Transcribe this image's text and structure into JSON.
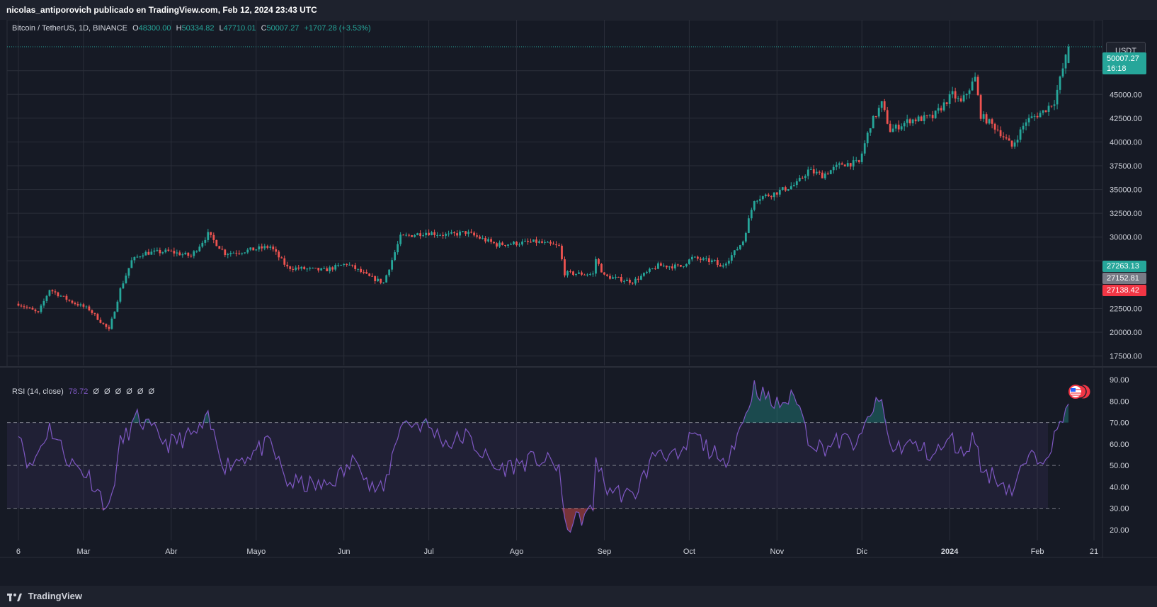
{
  "header": {
    "attribution": "nicolas_antiporovich publicado en TradingView.com, Feb 12, 2024 23:43 UTC"
  },
  "legend": {
    "symbol": "Bitcoin / TetherUS, 1D, BINANCE",
    "o_label": "O",
    "o_value": "48300.00",
    "h_label": "H",
    "h_value": "50334.82",
    "l_label": "L",
    "l_value": "47710.01",
    "c_label": "C",
    "c_value": "50007.27",
    "change": "+1707.28 (+3.53%)"
  },
  "rsi_legend": {
    "label": "RSI (14, close)",
    "value": "78.72",
    "extras": "Ø Ø Ø Ø Ø Ø"
  },
  "currency_button": "USDT",
  "price_tags": {
    "last_price": "50007.27",
    "countdown": "16:18",
    "tag_green": "27263.13",
    "tag_gray": "27152.81",
    "tag_red": "27138.42"
  },
  "footer": {
    "brand": "TradingView"
  },
  "colors": {
    "up": "#26a69a",
    "down": "#ef5350",
    "rsi_line": "#7e57c2",
    "background": "#161a25",
    "grid": "#2a2e39",
    "text": "#d1d4dc"
  },
  "chart_data": [
    {
      "type": "candlestick",
      "ylim": [
        16500,
        51500
      ],
      "y_ticks": [
        17500,
        20000,
        22500,
        25000,
        27500,
        30000,
        32500,
        35000,
        37500,
        40000,
        42500,
        45000,
        47500
      ],
      "y_tick_labels_visible": [
        "17500.00",
        "20000.00",
        "22500.00",
        "30000.00",
        "32500.00",
        "35000.00",
        "37500.00",
        "40000.00",
        "42500.00",
        "45000.00",
        "47500.00"
      ],
      "x_labels": [
        "6",
        "Mar",
        "Abr",
        "Mayo",
        "Jun",
        "Jul",
        "Ago",
        "Sep",
        "Oct",
        "Nov",
        "Dic",
        "2024",
        "Feb",
        "21"
      ],
      "close_keypoints": [
        [
          "2023-02-06",
          23000
        ],
        [
          "2023-02-13",
          22000
        ],
        [
          "2023-02-17",
          24500
        ],
        [
          "2023-02-24",
          23300
        ],
        [
          "2023-03-03",
          22400
        ],
        [
          "2023-03-10",
          20200
        ],
        [
          "2023-03-14",
          24500
        ],
        [
          "2023-03-18",
          27500
        ],
        [
          "2023-03-22",
          28300
        ],
        [
          "2023-03-31",
          28500
        ],
        [
          "2023-04-08",
          28000
        ],
        [
          "2023-04-14",
          30300
        ],
        [
          "2023-04-20",
          28300
        ],
        [
          "2023-04-26",
          28500
        ],
        [
          "2023-05-06",
          29000
        ],
        [
          "2023-05-12",
          26800
        ],
        [
          "2023-05-25",
          26500
        ],
        [
          "2023-06-02",
          27200
        ],
        [
          "2023-06-10",
          25800
        ],
        [
          "2023-06-15",
          25200
        ],
        [
          "2023-06-21",
          30000
        ],
        [
          "2023-06-30",
          30500
        ],
        [
          "2023-07-08",
          30200
        ],
        [
          "2023-07-14",
          30500
        ],
        [
          "2023-07-25",
          29200
        ],
        [
          "2023-08-08",
          29500
        ],
        [
          "2023-08-16",
          29000
        ],
        [
          "2023-08-18",
          26200
        ],
        [
          "2023-08-28",
          26100
        ],
        [
          "2023-08-29",
          27700
        ],
        [
          "2023-09-01",
          25900
        ],
        [
          "2023-09-11",
          25300
        ],
        [
          "2023-09-20",
          27000
        ],
        [
          "2023-09-28",
          26900
        ],
        [
          "2023-10-02",
          27800
        ],
        [
          "2023-10-10",
          27400
        ],
        [
          "2023-10-12",
          26800
        ],
        [
          "2023-10-17",
          28400
        ],
        [
          "2023-10-20",
          29600
        ],
        [
          "2023-10-24",
          34000
        ],
        [
          "2023-10-31",
          34600
        ],
        [
          "2023-11-08",
          35600
        ],
        [
          "2023-11-12",
          37000
        ],
        [
          "2023-11-17",
          36500
        ],
        [
          "2023-11-24",
          37700
        ],
        [
          "2023-11-30",
          37800
        ],
        [
          "2023-12-04",
          41800
        ],
        [
          "2023-12-08",
          44000
        ],
        [
          "2023-12-11",
          41200
        ],
        [
          "2023-12-18",
          42300
        ],
        [
          "2023-12-26",
          42600
        ],
        [
          "2024-01-02",
          45000
        ],
        [
          "2024-01-05",
          44100
        ],
        [
          "2024-01-10",
          46700
        ],
        [
          "2024-01-12",
          42800
        ],
        [
          "2024-01-18",
          41300
        ],
        [
          "2024-01-23",
          39500
        ],
        [
          "2024-01-28",
          42200
        ],
        [
          "2024-02-03",
          43200
        ],
        [
          "2024-02-07",
          44300
        ],
        [
          "2024-02-12",
          50007
        ]
      ]
    },
    {
      "type": "line",
      "name": "RSI (14, close)",
      "ylim": [
        15,
        95
      ],
      "y_ticks": [
        20,
        30,
        40,
        50,
        60,
        70,
        80,
        90
      ],
      "band": [
        30,
        70
      ],
      "midline": 50,
      "keypoints": [
        [
          "2023-02-06",
          68
        ],
        [
          "2023-02-10",
          48
        ],
        [
          "2023-02-17",
          68
        ],
        [
          "2023-02-24",
          52
        ],
        [
          "2023-03-03",
          45
        ],
        [
          "2023-03-10",
          29
        ],
        [
          "2023-03-14",
          60
        ],
        [
          "2023-03-20",
          72
        ],
        [
          "2023-03-31",
          60
        ],
        [
          "2023-04-10",
          65
        ],
        [
          "2023-04-14",
          71
        ],
        [
          "2023-04-20",
          50
        ],
        [
          "2023-04-28",
          55
        ],
        [
          "2023-05-06",
          60
        ],
        [
          "2023-05-12",
          42
        ],
        [
          "2023-05-25",
          40
        ],
        [
          "2023-06-02",
          48
        ],
        [
          "2023-06-06",
          55
        ],
        [
          "2023-06-10",
          40
        ],
        [
          "2023-06-15",
          38
        ],
        [
          "2023-06-21",
          70
        ],
        [
          "2023-06-30",
          69
        ],
        [
          "2023-07-08",
          60
        ],
        [
          "2023-07-14",
          64
        ],
        [
          "2023-07-25",
          48
        ],
        [
          "2023-08-08",
          53
        ],
        [
          "2023-08-16",
          50
        ],
        [
          "2023-08-18",
          21
        ],
        [
          "2023-08-28",
          29
        ],
        [
          "2023-08-29",
          55
        ],
        [
          "2023-09-01",
          40
        ],
        [
          "2023-09-11",
          35
        ],
        [
          "2023-09-20",
          58
        ],
        [
          "2023-09-28",
          52
        ],
        [
          "2023-10-02",
          65
        ],
        [
          "2023-10-10",
          55
        ],
        [
          "2023-10-12",
          48
        ],
        [
          "2023-10-17",
          62
        ],
        [
          "2023-10-20",
          70
        ],
        [
          "2023-10-24",
          87
        ],
        [
          "2023-10-31",
          78
        ],
        [
          "2023-11-08",
          82
        ],
        [
          "2023-11-12",
          63
        ],
        [
          "2023-11-17",
          58
        ],
        [
          "2023-11-24",
          62
        ],
        [
          "2023-11-30",
          60
        ],
        [
          "2023-12-04",
          75
        ],
        [
          "2023-12-08",
          80
        ],
        [
          "2023-12-11",
          58
        ],
        [
          "2023-12-18",
          60
        ],
        [
          "2023-12-26",
          55
        ],
        [
          "2024-01-02",
          62
        ],
        [
          "2024-01-05",
          55
        ],
        [
          "2024-01-10",
          64
        ],
        [
          "2024-01-12",
          48
        ],
        [
          "2024-01-18",
          44
        ],
        [
          "2024-01-23",
          38
        ],
        [
          "2024-01-28",
          52
        ],
        [
          "2024-02-03",
          55
        ],
        [
          "2024-02-07",
          62
        ],
        [
          "2024-02-12",
          78.72
        ]
      ],
      "y_tick_labels": [
        "20.00",
        "30.00",
        "40.00",
        "50.00",
        "60.00",
        "70.00",
        "80.00",
        "90.00"
      ]
    }
  ]
}
